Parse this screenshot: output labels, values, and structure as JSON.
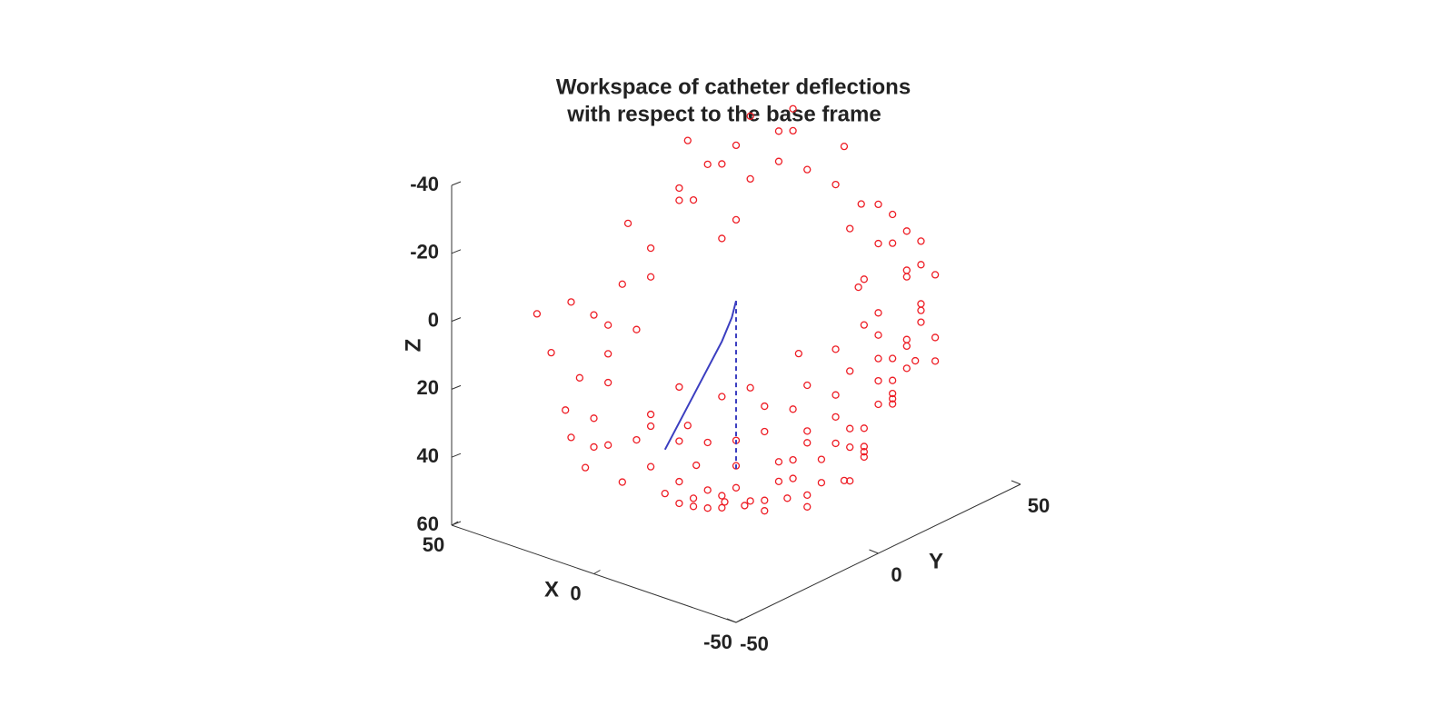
{
  "chart_data": {
    "type": "scatter3d",
    "title": [
      "Workspace of catheter deflections",
      "with respect to the base frame"
    ],
    "xlabel": "X",
    "ylabel": "Y",
    "zlabel": "Z",
    "xlim": [
      -50,
      50
    ],
    "ylim": [
      -50,
      50
    ],
    "zlim": [
      -40,
      60
    ],
    "zreversed": true,
    "xticks": [
      -50,
      0,
      50
    ],
    "yticks": [
      -50,
      0,
      50
    ],
    "zticks": [
      -40,
      -20,
      0,
      20,
      40,
      60
    ],
    "series": [
      {
        "kind": "points",
        "color": "#ee1c24",
        "x": [
          -20,
          -30,
          -25,
          -10,
          -15,
          -35,
          -30,
          -40,
          -20,
          -10,
          -5,
          -25,
          -15,
          -30,
          -35,
          -40,
          -20,
          -10,
          0,
          -5,
          -15,
          -25,
          -30,
          -20,
          -10,
          0,
          5,
          10,
          15,
          20,
          25,
          10,
          0,
          -10,
          -20,
          -30,
          -40,
          -45,
          -45,
          -40,
          -35,
          -30,
          -20,
          -10,
          0,
          5,
          10,
          0,
          -5,
          -15,
          -25,
          -35,
          -45,
          -48,
          -50,
          -45,
          -35,
          -25,
          -15,
          -5,
          5,
          15,
          25,
          30,
          30,
          20,
          10,
          -5,
          -20,
          -30,
          -10,
          0,
          -15,
          -25,
          -35,
          -10,
          5,
          15,
          -5,
          -15,
          -25,
          -40,
          -30,
          -20,
          -10,
          -38,
          -28,
          -18,
          -8,
          2,
          12,
          22,
          8,
          -2,
          40,
          45,
          40,
          35,
          30,
          20,
          25,
          15,
          40,
          45,
          35,
          30,
          40,
          45,
          48,
          30,
          25,
          20,
          35,
          30,
          20,
          10,
          25,
          35,
          45,
          48,
          42,
          10,
          0,
          15,
          20,
          38,
          50,
          28,
          18
        ],
        "y": [
          30,
          20,
          25,
          35,
          30,
          10,
          15,
          5,
          20,
          25,
          30,
          35,
          40,
          30,
          25,
          15,
          10,
          15,
          20,
          10,
          5,
          0,
          -5,
          -10,
          -5,
          0,
          5,
          10,
          5,
          0,
          -5,
          -10,
          -15,
          -20,
          -25,
          -20,
          -10,
          0,
          10,
          20,
          30,
          35,
          40,
          40,
          35,
          30,
          25,
          40,
          45,
          45,
          40,
          35,
          25,
          15,
          5,
          -10,
          -20,
          -30,
          -30,
          -25,
          -20,
          -15,
          -10,
          0,
          10,
          15,
          20,
          20,
          30,
          25,
          30,
          25,
          20,
          15,
          5,
          10,
          15,
          20,
          38,
          35,
          30,
          25,
          40,
          45,
          45,
          0,
          -10,
          -15,
          -12,
          -8,
          -2,
          5,
          30,
          42,
          20,
          5,
          -5,
          25,
          30,
          35,
          30,
          35,
          10,
          0,
          -10,
          -20,
          -15,
          -5,
          10,
          15,
          20,
          25,
          5,
          -5,
          -25,
          -30,
          -25,
          -25,
          -20,
          -10,
          25,
          30,
          38,
          10,
          20,
          18,
          -20,
          -30,
          -35
        ],
        "z": [
          10,
          30,
          20,
          5,
          15,
          40,
          35,
          35,
          40,
          35,
          25,
          0,
          -5,
          15,
          20,
          25,
          45,
          45,
          40,
          50,
          50,
          50,
          50,
          52,
          54,
          55,
          52,
          48,
          48,
          47,
          42,
          52,
          52,
          50,
          45,
          42,
          38,
          30,
          20,
          10,
          5,
          -5,
          -10,
          -15,
          -20,
          -25,
          -28,
          -5,
          0,
          5,
          10,
          15,
          15,
          10,
          15,
          25,
          35,
          38,
          44,
          48,
          50,
          47,
          44,
          42,
          38,
          40,
          42,
          45,
          30,
          25,
          30,
          35,
          38,
          42,
          45,
          48,
          46,
          38,
          10,
          20,
          22,
          5,
          0,
          -5,
          -10,
          42,
          46,
          49,
          52,
          53,
          51,
          45,
          30,
          -12,
          -10,
          10,
          25,
          -20,
          -25,
          -30,
          -35,
          -38,
          0,
          20,
          30,
          35,
          28,
          15,
          -5,
          -15,
          -25,
          -20,
          5,
          15,
          38,
          44,
          40,
          32,
          20,
          10,
          -25,
          -35,
          -30,
          -10,
          -10,
          -15,
          10,
          36,
          40
        ]
      },
      {
        "kind": "line",
        "color": "#3b3ec0",
        "x": [
          0,
          1,
          3,
          6,
          9,
          12,
          15
        ],
        "y": [
          0,
          -0.5,
          -2,
          -4,
          -6,
          -8,
          -10
        ],
        "z": [
          0,
          5,
          12,
          20,
          28,
          36,
          44
        ]
      },
      {
        "kind": "line",
        "color": "#3b3ec0",
        "dashed": true,
        "x": [
          0,
          0
        ],
        "y": [
          0,
          0
        ],
        "z": [
          0,
          50
        ]
      }
    ]
  }
}
